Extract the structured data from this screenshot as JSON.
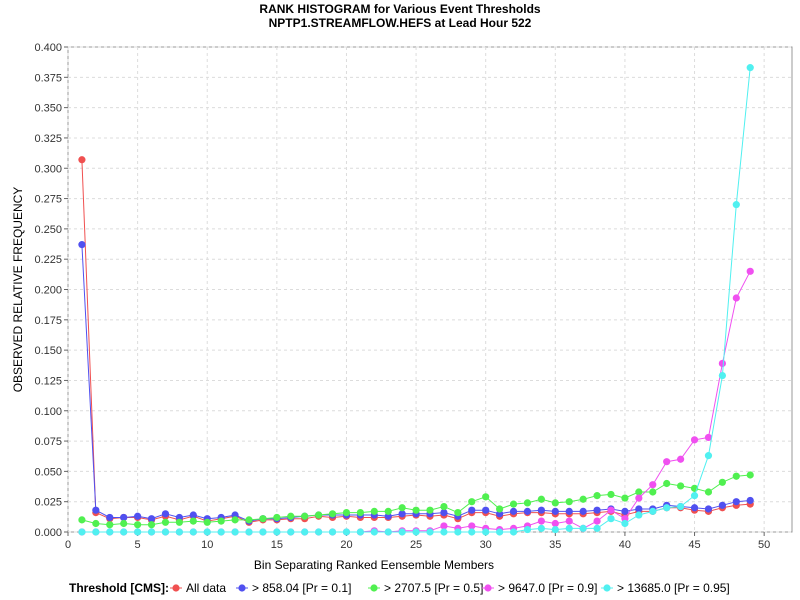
{
  "chart_data": {
    "type": "line",
    "title": "RANK HISTOGRAM for Various Event Thresholds",
    "subtitle": "NPTP1.STREAMFLOW.HEFS at Lead Hour 522",
    "xlabel": "Bin Separating Ranked Eensemble Members",
    "ylabel": "OBSERVED RELATIVE FREQUENCY",
    "xlim": [
      0,
      52
    ],
    "ylim": [
      0,
      0.4
    ],
    "xticks": [
      0,
      5,
      10,
      15,
      20,
      25,
      30,
      35,
      40,
      45,
      50
    ],
    "yticks": [
      0.0,
      0.025,
      0.05,
      0.075,
      0.1,
      0.125,
      0.15,
      0.175,
      0.2,
      0.225,
      0.25,
      0.275,
      0.3,
      0.325,
      0.35,
      0.375,
      0.4
    ],
    "ytick_labels": [
      "0.000",
      "0.025",
      "0.050",
      "0.075",
      "0.100",
      "0.125",
      "0.150",
      "0.175",
      "0.200",
      "0.225",
      "0.250",
      "0.275",
      "0.300",
      "0.325",
      "0.350",
      "0.375",
      "0.400"
    ],
    "grid": true,
    "legend_title": "Threshold [CMS]:",
    "legend_position": "bottom",
    "x": [
      1,
      2,
      3,
      4,
      5,
      6,
      7,
      8,
      9,
      10,
      11,
      12,
      13,
      14,
      15,
      16,
      17,
      18,
      19,
      20,
      21,
      22,
      23,
      24,
      25,
      26,
      27,
      28,
      29,
      30,
      31,
      32,
      33,
      34,
      35,
      36,
      37,
      38,
      39,
      40,
      41,
      42,
      43,
      44,
      45,
      46,
      47,
      48,
      49
    ],
    "series": [
      {
        "name": "All data",
        "color": "#f05050",
        "values": [
          0.307,
          0.016,
          0.011,
          0.012,
          0.012,
          0.01,
          0.013,
          0.01,
          0.013,
          0.009,
          0.011,
          0.013,
          0.008,
          0.01,
          0.01,
          0.011,
          0.011,
          0.013,
          0.012,
          0.013,
          0.012,
          0.012,
          0.012,
          0.013,
          0.014,
          0.013,
          0.014,
          0.011,
          0.016,
          0.016,
          0.013,
          0.015,
          0.016,
          0.016,
          0.015,
          0.015,
          0.015,
          0.016,
          0.017,
          0.014,
          0.017,
          0.017,
          0.02,
          0.02,
          0.018,
          0.017,
          0.02,
          0.022,
          0.023
        ]
      },
      {
        "name": "> 858.04 [Pr = 0.1]",
        "color": "#5050f0",
        "values": [
          0.237,
          0.018,
          0.012,
          0.012,
          0.013,
          0.011,
          0.015,
          0.012,
          0.014,
          0.011,
          0.012,
          0.014,
          0.009,
          0.011,
          0.011,
          0.012,
          0.013,
          0.014,
          0.014,
          0.014,
          0.014,
          0.014,
          0.013,
          0.015,
          0.015,
          0.015,
          0.016,
          0.013,
          0.018,
          0.018,
          0.015,
          0.017,
          0.017,
          0.018,
          0.017,
          0.017,
          0.017,
          0.018,
          0.019,
          0.017,
          0.019,
          0.019,
          0.022,
          0.021,
          0.02,
          0.019,
          0.022,
          0.025,
          0.026
        ]
      },
      {
        "name": "> 2707.5 [Pr = 0.5]",
        "color": "#50f050",
        "values": [
          0.01,
          0.007,
          0.006,
          0.007,
          0.006,
          0.006,
          0.008,
          0.008,
          0.009,
          0.008,
          0.009,
          0.01,
          0.01,
          0.011,
          0.012,
          0.013,
          0.013,
          0.014,
          0.015,
          0.016,
          0.016,
          0.017,
          0.017,
          0.02,
          0.018,
          0.018,
          0.021,
          0.016,
          0.025,
          0.029,
          0.019,
          0.023,
          0.024,
          0.027,
          0.024,
          0.025,
          0.027,
          0.03,
          0.031,
          0.028,
          0.033,
          0.033,
          0.04,
          0.038,
          0.036,
          0.033,
          0.041,
          0.046,
          0.047
        ]
      },
      {
        "name": "> 9647.0 [Pr = 0.9]",
        "color": "#f050f0",
        "values": [
          0.0,
          0.0,
          0.0,
          0.0,
          0.0,
          0.0,
          0.0,
          0.0,
          0.0,
          0.0,
          0.0,
          0.0,
          0.0,
          0.0,
          0.0,
          0.0,
          0.0,
          0.0,
          0.0,
          0.0,
          0.0,
          0.001,
          0.0,
          0.001,
          0.001,
          0.001,
          0.005,
          0.003,
          0.005,
          0.003,
          0.002,
          0.003,
          0.005,
          0.009,
          0.007,
          0.009,
          0.003,
          0.009,
          0.018,
          0.011,
          0.028,
          0.039,
          0.058,
          0.06,
          0.076,
          0.078,
          0.139,
          0.193,
          0.215
        ]
      },
      {
        "name": "> 13685.0 [Pr = 0.95]",
        "color": "#50f0f0",
        "values": [
          0.0,
          0.0,
          0.0,
          0.0,
          0.0,
          0.0,
          0.0,
          0.0,
          0.0,
          0.0,
          0.0,
          0.0,
          0.0,
          0.0,
          0.0,
          0.0,
          0.0,
          0.0,
          0.0,
          0.0,
          0.0,
          0.0,
          0.0,
          0.0,
          0.0,
          0.0,
          0.0,
          0.0,
          0.0,
          0.0,
          0.0,
          0.0,
          0.002,
          0.003,
          0.002,
          0.003,
          0.003,
          0.003,
          0.011,
          0.007,
          0.014,
          0.017,
          0.02,
          0.021,
          0.03,
          0.063,
          0.129,
          0.27,
          0.383
        ]
      }
    ]
  }
}
